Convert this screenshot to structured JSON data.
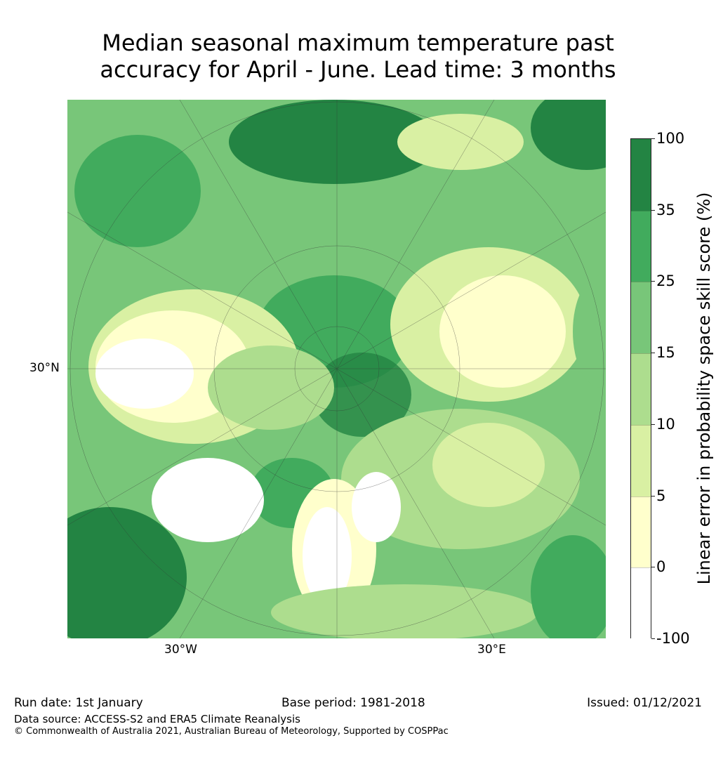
{
  "title": {
    "line1": "Median seasonal maximum temperature past",
    "line2": "accuracy for April - June. Lead time: 3 months"
  },
  "map": {
    "lat_label": "30°N",
    "lon_labels": [
      "30°W",
      "30°E"
    ]
  },
  "colorbar": {
    "label": "Linear error in probability space skill score (%)",
    "ticks": [
      "100",
      "35",
      "25",
      "15",
      "10",
      "5",
      "0",
      "-100"
    ],
    "colors": [
      "#238443",
      "#41ab5d",
      "#78c679",
      "#addd8e",
      "#d9f0a3",
      "#ffffcc",
      "#ffffff"
    ]
  },
  "footer": {
    "run_date": "Run date: 1st January",
    "base_period": "Base period: 1981-2018",
    "issued": "Issued: 01/12/2021",
    "data_source": "Data source: ACCESS-S2 and ERA5 Climate Reanalysis",
    "copyright": "© Commonwealth of Australia 2021, Australian Bureau of Meteorology, Supported by COSPPac"
  }
}
